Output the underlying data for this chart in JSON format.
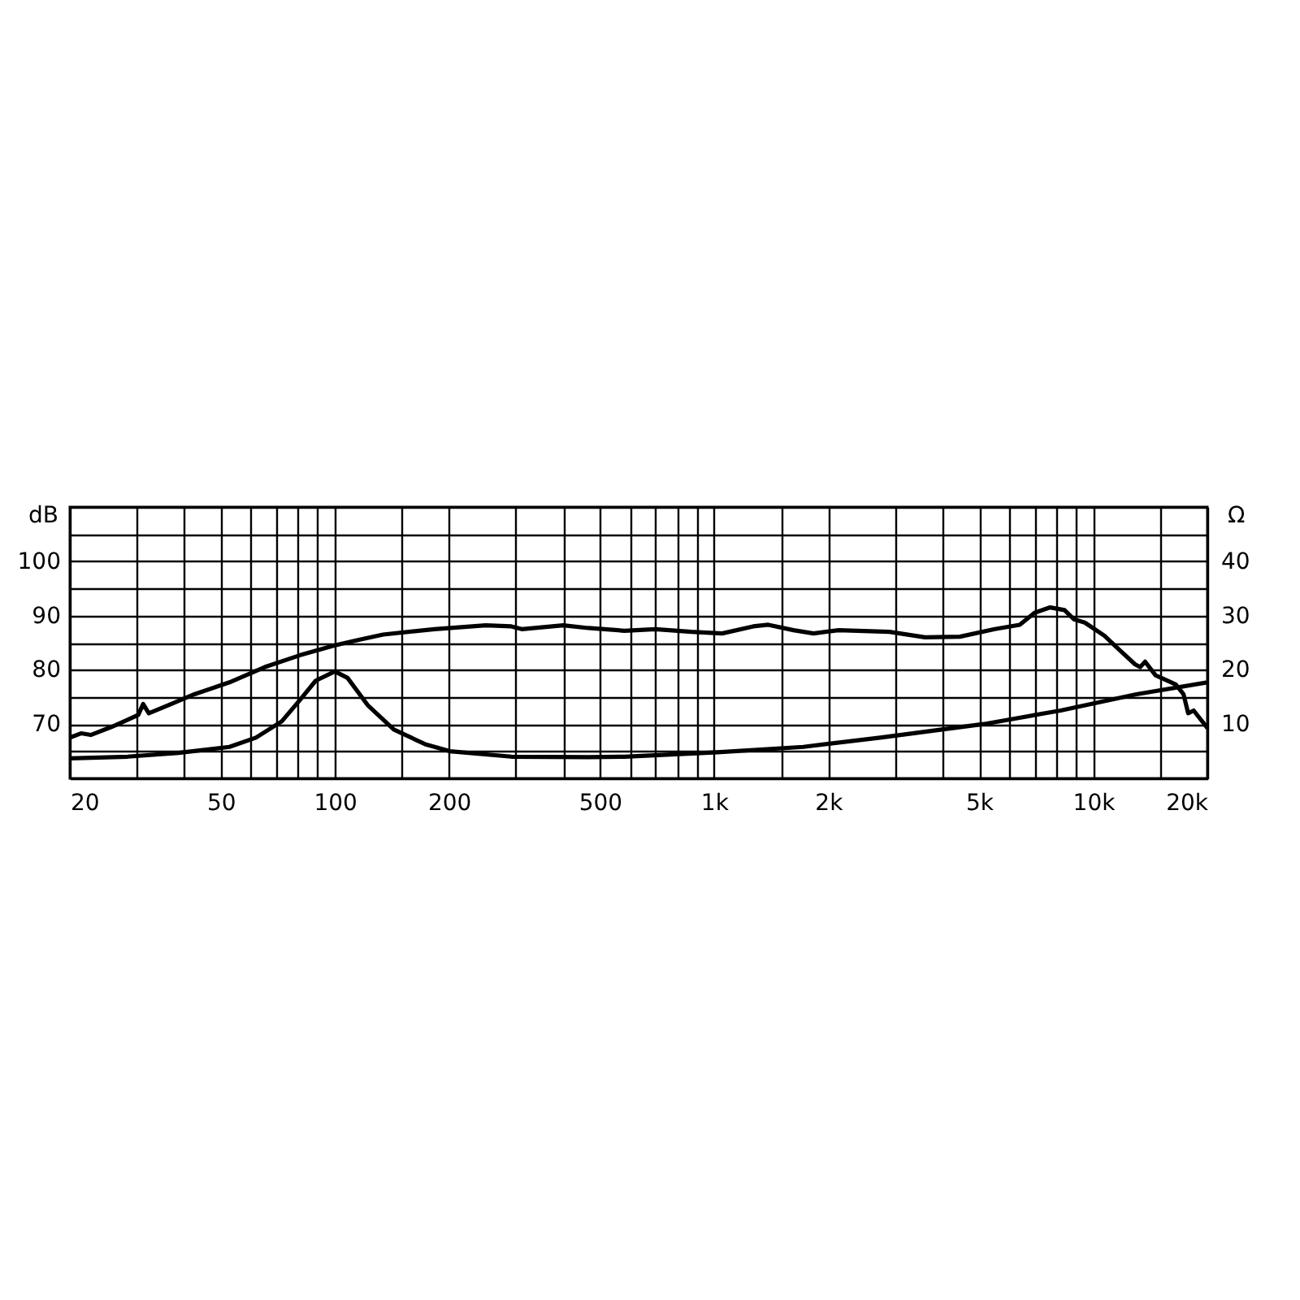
{
  "chart_data": {
    "type": "line",
    "ylabel": "dB",
    "y2label": "Ω",
    "grid": true,
    "log": "x",
    "xlim": [
      20,
      20000
    ],
    "xticks": [
      20,
      {
        "value": 30,
        "label": null
      },
      {
        "value": 40,
        "label": null
      },
      50,
      {
        "value": 60,
        "label": null
      },
      {
        "value": 70,
        "label": null
      },
      {
        "value": 80,
        "label": null
      },
      {
        "value": 90,
        "label": null
      },
      100,
      {
        "value": 150,
        "label": null
      },
      200,
      {
        "value": 300,
        "label": null
      },
      {
        "value": 400,
        "label": null
      },
      500,
      {
        "value": 600,
        "label": null
      },
      {
        "value": 700,
        "label": null
      },
      {
        "value": 800,
        "label": null
      },
      {
        "value": 900,
        "label": null
      },
      {
        "value": 1000,
        "label": "1k"
      },
      {
        "value": 1500,
        "label": null
      },
      {
        "value": 2000,
        "label": "2k"
      },
      {
        "value": 3000,
        "label": null
      },
      {
        "value": 4000,
        "label": null
      },
      {
        "value": 5000,
        "label": "5k"
      },
      {
        "value": 6000,
        "label": null
      },
      {
        "value": 7000,
        "label": null
      },
      {
        "value": 8000,
        "label": null
      },
      {
        "value": 9000,
        "label": null
      },
      {
        "value": 10000,
        "label": "10k"
      },
      {
        "value": 15000,
        "label": null
      },
      {
        "value": 20000,
        "label": "20k"
      }
    ],
    "ylim": [
      60,
      110
    ],
    "yticks": [
      {
        "value": 60,
        "label": null
      },
      {
        "value": 65,
        "label": null
      },
      70,
      {
        "value": 75,
        "label": null
      },
      80,
      {
        "value": 85,
        "label": null
      },
      90,
      {
        "value": 95,
        "label": null
      },
      100,
      {
        "value": 105,
        "label": null
      },
      {
        "value": 110,
        "label": null
      }
    ],
    "y2lim": [
      0,
      50
    ],
    "y2ticks": [
      10,
      20,
      30,
      40
    ],
    "series": [
      {
        "color": "#000000",
        "x": [
          20,
          21.4,
          22.7,
          25.8,
          28.4,
          30.3,
          31.2,
          32.3,
          36.4,
          42.6,
          52.7,
          65.3,
          81,
          100,
          115,
          134,
          183,
          250,
          292,
          311,
          400,
          466,
          580,
          700,
          871,
          1050,
          1268,
          1390,
          1620,
          1830,
          2130,
          2900,
          3600,
          4450,
          5500,
          6400,
          7000,
          7700,
          8400,
          8900,
          9500,
          10700,
          11800,
          12900,
          13300,
          13700,
          14600,
          16500,
          17300,
          17800,
          18400,
          20000
        ],
        "values": [
          67.5,
          68.3,
          68,
          69.5,
          70.8,
          71.7,
          73.7,
          72,
          73.5,
          75.5,
          77.7,
          80.5,
          82.7,
          84.5,
          85.5,
          86.5,
          87.5,
          88.2,
          88,
          87.5,
          88.2,
          87.7,
          87.2,
          87.5,
          87,
          86.7,
          88,
          88.3,
          87.3,
          86.7,
          87.3,
          87,
          86,
          86.1,
          87.5,
          88.3,
          90.5,
          91.5,
          91,
          89.3,
          88.7,
          86.3,
          83.5,
          81,
          80.5,
          81.5,
          79,
          77.3,
          75.5,
          72,
          72.5,
          69.3
        ]
      },
      {
        "color": "#000000",
        "axis": "y2",
        "x": [
          20,
          28.4,
          38.7,
          52.7,
          61.9,
          72.4,
          81,
          89,
          100,
          108,
          122,
          143,
          173,
          201,
          292,
          466,
          580,
          1020,
          1720,
          2740,
          5140,
          8200,
          13000,
          20000
        ],
        "values": [
          3.7,
          4,
          4.7,
          5.8,
          7.5,
          10.5,
          14.5,
          18,
          19.7,
          18.5,
          13.5,
          9,
          6.3,
          5,
          4,
          3.9,
          4,
          4.8,
          5.8,
          7.5,
          10,
          12.5,
          15.5,
          17.7
        ]
      }
    ]
  }
}
